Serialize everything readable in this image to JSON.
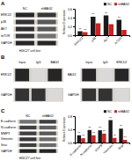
{
  "chart_data": [
    {
      "type": "western_blot",
      "title": "A",
      "xlabel": "HGC27 cell line",
      "categories": [
        "ERK1/2",
        "p38",
        "AKT",
        "mTOR",
        "GAPDH"
      ],
      "series": [
        {
          "name": "NC",
          "values": [
            0.15,
            0.2,
            0.18,
            0.22,
            0.15
          ]
        },
        {
          "name": "shBAG2",
          "values": [
            0.22,
            0.35,
            0.35,
            0.45,
            0.15
          ]
        }
      ]
    },
    {
      "type": "bar",
      "categories": [
        "ERK1/2",
        "p38",
        "AKT",
        "mTOR"
      ],
      "series": [
        {
          "name": "NC",
          "color": "#1a1a1a",
          "values": [
            0.09,
            0.42,
            0.45,
            0.35
          ]
        },
        {
          "name": "shBAG2",
          "color": "#cc2222",
          "values": [
            0.07,
            0.27,
            0.25,
            0.12
          ]
        }
      ],
      "ylim": [
        0,
        0.6
      ],
      "yticks": [
        {
          "value": 0.0,
          "label": "0.0"
        },
        0.2,
        0.4,
        0.6
      ],
      "ylabel": "Relative Expression",
      "legend": "upper right",
      "annotations": [
        {
          "text": "**",
          "series": "NC",
          "category": "ERK1/2"
        },
        {
          "text": "**",
          "series": "NC",
          "category": "p38"
        },
        {
          "text": "**",
          "series": "NC",
          "category": "AKT"
        },
        {
          "text": "**",
          "series": "NC",
          "category": "mTOR"
        },
        {
          "text": "**",
          "series": "shBAG2",
          "category": "ERK1/2"
        }
      ]
    },
    {
      "type": "western_blot",
      "title": "B",
      "categories": [
        "ERK1/2",
        "GAPDH"
      ],
      "series": [
        {
          "name": "Input",
          "values": [
            0.15,
            0.2
          ]
        },
        {
          "name": "IgG",
          "values": [
            0.85,
            0.2
          ]
        },
        {
          "name": "BAG2",
          "values": [
            0.15,
            0.85
          ]
        }
      ]
    },
    {
      "type": "western_blot",
      "categories": [
        "BAG2",
        "GAPDH"
      ],
      "series": [
        {
          "name": "Input",
          "values": [
            0.15,
            0.2
          ]
        },
        {
          "name": "IgG",
          "values": [
            0.85,
            0.2
          ]
        },
        {
          "name": "ERK1/2",
          "values": [
            0.15,
            0.85
          ]
        }
      ]
    },
    {
      "type": "western_blot",
      "title": "C",
      "xlabel": "HGC27 cell line",
      "categories": [
        "E-cadherin",
        "N-cadherin",
        "MMP9",
        "Vimentin",
        "Snai",
        "GAPDH"
      ],
      "series": [
        {
          "name": "NC",
          "values": [
            0.45,
            0.25,
            0.25,
            0.22,
            0.25,
            0.15
          ]
        },
        {
          "name": "shBAG2",
          "values": [
            0.25,
            0.38,
            0.35,
            0.42,
            0.42,
            0.15
          ]
        }
      ]
    },
    {
      "type": "bar",
      "categories": [
        "E-cadherin",
        "N-cadherin",
        "MMP9",
        "Vimentin",
        "Snai"
      ],
      "series": [
        {
          "name": "NC",
          "color": "#1a1a1a",
          "values": [
            0.22,
            0.38,
            0.37,
            0.68,
            0.42
          ]
        },
        {
          "name": "shBAG2",
          "color": "#cc2222",
          "values": [
            0.13,
            0.22,
            0.27,
            0.14,
            0.08
          ]
        }
      ],
      "ylim": [
        0,
        0.8
      ],
      "yticks": [
        {
          "value": 0.0,
          "label": "0.0"
        },
        0.4,
        0.8
      ],
      "ylabel": "Relative Expression",
      "legend": "upper right",
      "annotations": [
        {
          "text": "**",
          "series": "NC",
          "category": "E-cadherin"
        },
        {
          "text": "**",
          "series": "shBAG2",
          "category": "E-cadherin"
        },
        {
          "text": "**",
          "series": "NC",
          "category": "N-cadherin"
        },
        {
          "text": "**",
          "series": "shBAG2",
          "category": "N-cadherin"
        },
        {
          "text": "**",
          "series": "NC",
          "category": "MMP9"
        },
        {
          "text": "**",
          "series": "shBAG2",
          "category": "MMP9"
        },
        {
          "text": "**",
          "series": "NC",
          "category": "Vimentin"
        },
        {
          "text": "**",
          "series": "shBAG2",
          "category": "Vimentin"
        },
        {
          "text": "**",
          "series": "NC",
          "category": "Snai"
        },
        {
          "text": "**",
          "series": "shBAG2",
          "category": "Snai"
        }
      ]
    }
  ]
}
